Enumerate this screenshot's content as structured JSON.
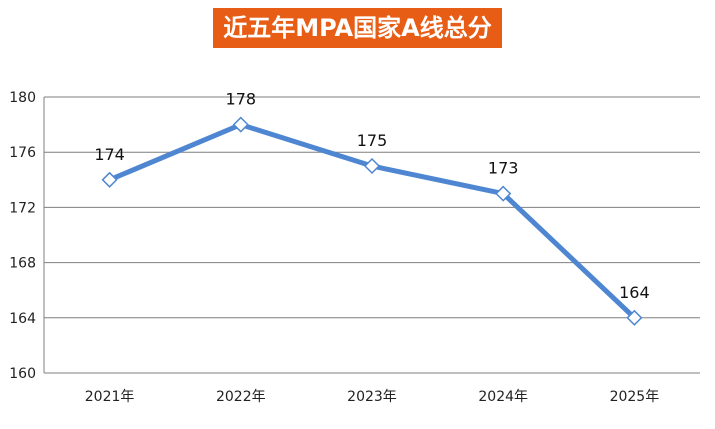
{
  "chart_data": {
    "type": "line",
    "title": "近五年MPA国家A线总分",
    "categories": [
      "2021年",
      "2022年",
      "2023年",
      "2024年",
      "2025年"
    ],
    "series": [
      {
        "values": [
          174,
          178,
          175,
          173,
          164
        ]
      }
    ],
    "data_labels": [
      "174",
      "178",
      "175",
      "173",
      "164"
    ],
    "ylim": [
      160,
      180
    ],
    "yticks": [
      160,
      164,
      168,
      172,
      176,
      180
    ],
    "grid": true,
    "legend": "none",
    "colors": {
      "title_bg": "#e85d16",
      "line": "#4f86d1",
      "grid": "#7f7f7f"
    }
  }
}
